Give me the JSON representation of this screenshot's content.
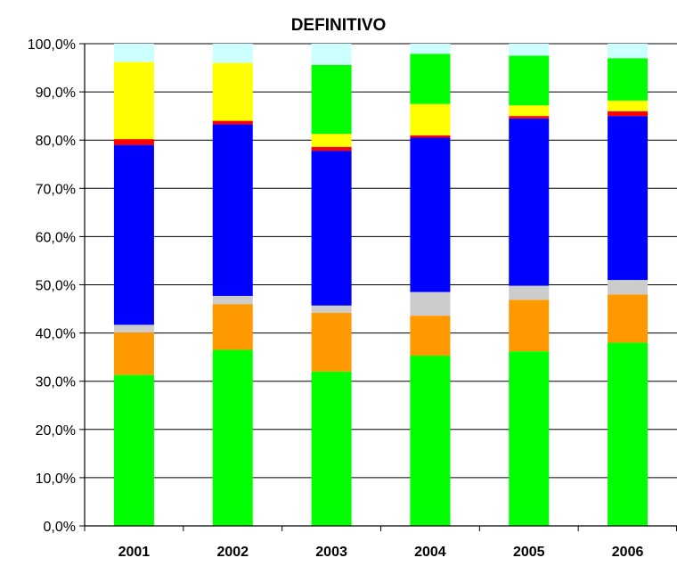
{
  "chart_data": {
    "type": "bar",
    "stacked": true,
    "title": "DEFINITIVO",
    "xlabel": "",
    "ylabel": "",
    "categories": [
      "2001",
      "2002",
      "2003",
      "2004",
      "2005",
      "2006"
    ],
    "ylim": [
      0,
      100
    ],
    "yticks": [
      "0,0%",
      "10,0%",
      "20,0%",
      "30,0%",
      "40,0%",
      "50,0%",
      "60,0%",
      "70,0%",
      "80,0%",
      "90,0%",
      "100,0%"
    ],
    "grid": true,
    "legend": "none",
    "series": [
      {
        "color": "#00FF00",
        "values": [
          31.3,
          36.5,
          32.0,
          35.3,
          36.2,
          38.0
        ]
      },
      {
        "color": "#FF9900",
        "values": [
          8.8,
          9.5,
          12.2,
          8.3,
          10.7,
          10.0
        ]
      },
      {
        "color": "#CCCCCC",
        "values": [
          1.6,
          1.7,
          1.5,
          4.9,
          2.9,
          3.0
        ]
      },
      {
        "color": "#0000FF",
        "values": [
          37.3,
          35.6,
          32.1,
          32.0,
          34.7,
          34.0
        ]
      },
      {
        "color": "#FF0000",
        "values": [
          1.2,
          0.7,
          0.8,
          0.5,
          0.5,
          1.0
        ]
      },
      {
        "color": "#FFFF00",
        "values": [
          16.0,
          12.0,
          2.7,
          6.5,
          2.2,
          2.2
        ]
      },
      {
        "color": "#00FF00",
        "values": [
          0.0,
          0.0,
          14.3,
          10.4,
          10.3,
          8.8
        ]
      },
      {
        "color": "#CCFFFF",
        "values": [
          3.8,
          4.0,
          4.4,
          2.1,
          2.5,
          3.0
        ]
      }
    ]
  }
}
